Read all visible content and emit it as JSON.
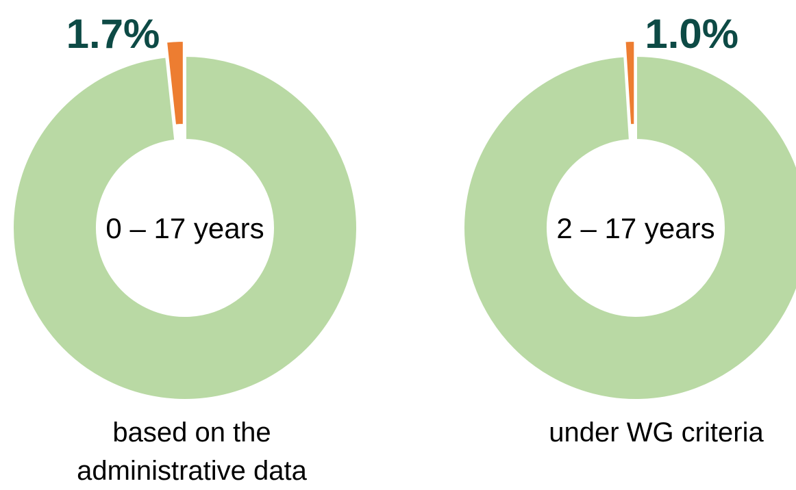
{
  "chart_data": [
    {
      "type": "pie",
      "donut": true,
      "categories": [
        null,
        null
      ],
      "values": [
        98.3,
        1.7
      ],
      "value_labels": [
        null,
        "1.7%"
      ],
      "colors": [
        "#b9d9a4",
        "#ed7d31"
      ],
      "center_label": "0 – 17 years",
      "caption": "based on the administrative data"
    },
    {
      "type": "pie",
      "donut": true,
      "categories": [
        null,
        null
      ],
      "values": [
        99.0,
        1.0
      ],
      "value_labels": [
        null,
        "1.0%"
      ],
      "colors": [
        "#b9d9a4",
        "#ed7d31"
      ],
      "center_label": "2 – 17 years",
      "caption": "under WG criteria"
    }
  ]
}
